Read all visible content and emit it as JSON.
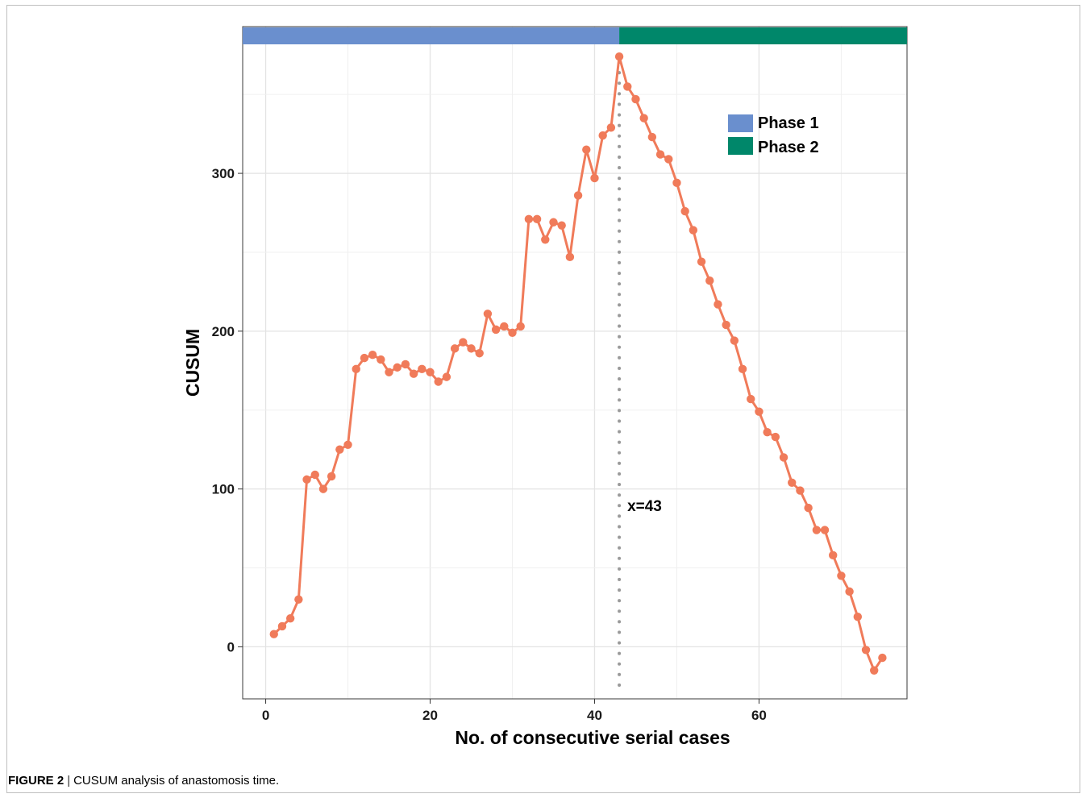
{
  "chart_data": {
    "type": "line",
    "xlabel": "No. of consecutive serial cases",
    "ylabel": "CUSUM",
    "xlim": [
      -2.8,
      78
    ],
    "ylim": [
      -33,
      393
    ],
    "x_ticks": [
      0,
      20,
      40,
      60
    ],
    "y_ticks": [
      0,
      100,
      200,
      300
    ],
    "grid": true,
    "legend_position": "top-right",
    "series": [
      {
        "color": "#f07b5a",
        "x": [
          1,
          2,
          3,
          4,
          5,
          6,
          7,
          8,
          9,
          10,
          11,
          12,
          13,
          14,
          15,
          16,
          17,
          18,
          19,
          20,
          21,
          22,
          23,
          24,
          25,
          26,
          27,
          28,
          29,
          30,
          31,
          32,
          33,
          34,
          35,
          36,
          37,
          38,
          39,
          40,
          41,
          42,
          43,
          44,
          45,
          46,
          47,
          48,
          49,
          50,
          51,
          52,
          53,
          54,
          55,
          56,
          57,
          58,
          59,
          60,
          61,
          62,
          63,
          64,
          65,
          66,
          67,
          68,
          69,
          70,
          71,
          72,
          73,
          74,
          75
        ],
        "values": [
          8,
          13,
          18,
          30,
          106,
          109,
          100,
          108,
          125,
          128,
          176,
          183,
          185,
          182,
          174,
          177,
          179,
          173,
          176,
          174,
          168,
          171,
          189,
          193,
          189,
          186,
          211,
          201,
          203,
          199,
          203,
          271,
          271,
          258,
          269,
          267,
          247,
          286,
          315,
          297,
          324,
          329,
          374,
          355,
          347,
          335,
          323,
          312,
          309,
          294,
          276,
          264,
          244,
          232,
          217,
          204,
          194,
          176,
          157,
          149,
          136,
          133,
          120,
          104,
          99,
          88,
          74,
          74,
          58,
          45,
          35,
          19,
          -2,
          -15,
          -7
        ]
      }
    ],
    "phases": [
      {
        "name": "Phase 1",
        "color": "#6a8fce",
        "x_start": -2.8,
        "x_end": 43
      },
      {
        "name": "Phase 2",
        "color": "#00876a",
        "x_start": 43,
        "x_end": 78
      }
    ],
    "vline": {
      "x": 43,
      "label": "x=43"
    }
  },
  "caption": {
    "label": "FIGURE 2",
    "separator": "|",
    "text": "CUSUM analysis of anastomosis time."
  }
}
